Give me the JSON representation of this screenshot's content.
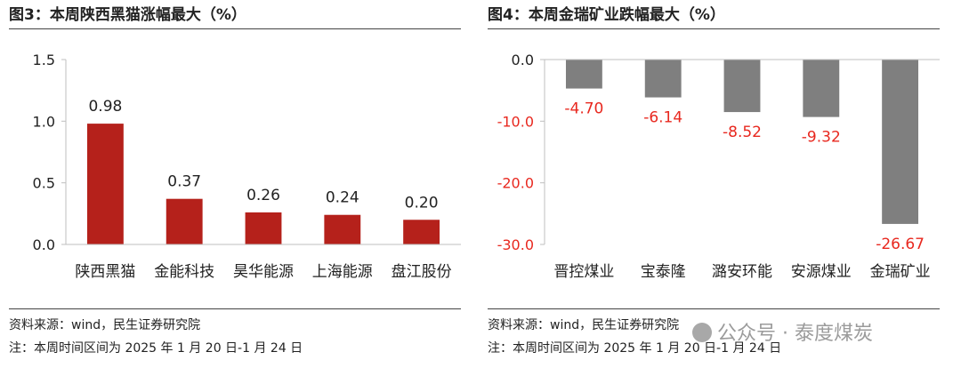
{
  "charts": [
    {
      "title": "图3：本周陕西黑猫涨幅最大（%）",
      "source": "资料来源：wind，民生证券研究院",
      "date_range": "注：本周时间区间为 2025 年 1 月 20 日-1 月 24 日"
    },
    {
      "title": "图4：本周金瑞矿业跌幅最大（%）",
      "source": "资料来源：wind，民生证券研究院",
      "date_range": "注：本周时间区间为 2025 年 1 月 20 日-1 月 24 日"
    }
  ],
  "watermark": "公众号 · 泰度煤炭",
  "chart_data": [
    {
      "type": "bar",
      "title": "图3：本周陕西黑猫涨幅最大（%）",
      "categories": [
        "陕西黑猫",
        "金能科技",
        "昊华能源",
        "上海能源",
        "盘江股份"
      ],
      "values": [
        0.98,
        0.37,
        0.26,
        0.24,
        0.2
      ],
      "value_labels": [
        "0.98",
        "0.37",
        "0.26",
        "0.24",
        "0.20"
      ],
      "ylim": [
        0,
        1.5
      ],
      "yticks": [
        0,
        0.5,
        1.0,
        1.5
      ],
      "ytick_labels": [
        "0.0",
        "0.5",
        "1.0",
        "1.5"
      ],
      "bar_color": "#b5211b",
      "label_color": "#222222",
      "axis_label_color": "#222222",
      "grid": false,
      "legend": "none"
    },
    {
      "type": "bar",
      "title": "图4：本周金瑞矿业跌幅最大（%）",
      "categories": [
        "晋控煤业",
        "宝泰隆",
        "潞安环能",
        "安源煤业",
        "金瑞矿业"
      ],
      "values": [
        -4.7,
        -6.14,
        -8.52,
        -9.32,
        -26.67
      ],
      "value_labels": [
        "-4.70",
        "-6.14",
        "-8.52",
        "-9.32",
        "-26.67"
      ],
      "ylim": [
        -30,
        0
      ],
      "yticks": [
        -30,
        -20,
        -10,
        0
      ],
      "ytick_labels": [
        "-30.0",
        "-20.0",
        "-10.0",
        "0.0"
      ],
      "bar_color": "#7f7f7f",
      "label_color": "#e8281f",
      "axis_label_color": "#e8281f",
      "zero_label_color": "#222222",
      "grid": false,
      "legend": "none"
    }
  ]
}
